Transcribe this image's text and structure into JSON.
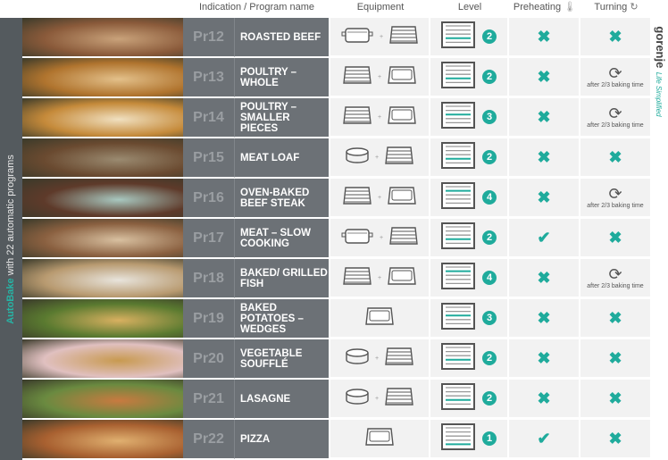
{
  "sidebar": {
    "highlight": "AutoBake",
    "text": " with 22 automatic programs"
  },
  "headers": {
    "program": "Indication / Program name",
    "equipment": "Equipment",
    "level": "Level",
    "preheating": "Preheating",
    "turning": "Turning"
  },
  "brand": {
    "name": "gorenje",
    "tagline": "Life Simplified"
  },
  "colors": {
    "accent": "#1fab9c",
    "sidebar": "#545a5e",
    "name_cell": "#6c7176"
  },
  "turning_note": "after 2/3 baking time",
  "plus": "+",
  "rows": [
    {
      "code": "Pr12",
      "name": "ROASTED BEEF",
      "equipment": [
        "roasting-dish",
        "wire-rack"
      ],
      "level": "2",
      "preheat": false,
      "turn": false,
      "img": [
        "#8a5a3a",
        "#c9a27a"
      ]
    },
    {
      "code": "Pr13",
      "name": "POULTRY – WHOLE",
      "equipment": [
        "wire-rack",
        "baking-tray"
      ],
      "level": "2",
      "preheat": false,
      "turn": true,
      "img": [
        "#b0742e",
        "#e3c08a"
      ]
    },
    {
      "code": "Pr14",
      "name": "POULTRY – SMALLER PIECES",
      "equipment": [
        "wire-rack",
        "baking-tray"
      ],
      "level": "3",
      "preheat": false,
      "turn": true,
      "img": [
        "#c58a3a",
        "#f0e0c0"
      ]
    },
    {
      "code": "Pr15",
      "name": "MEAT LOAF",
      "equipment": [
        "round-dish",
        "wire-rack"
      ],
      "level": "2",
      "preheat": false,
      "turn": false,
      "img": [
        "#6a4a30",
        "#9a8a70"
      ]
    },
    {
      "code": "Pr16",
      "name": "OVEN-BAKED BEEF STEAK",
      "equipment": [
        "wire-rack",
        "baking-tray"
      ],
      "level": "4",
      "preheat": false,
      "turn": true,
      "img": [
        "#5e3a2a",
        "#a8c8c0"
      ]
    },
    {
      "code": "Pr17",
      "name": "MEAT – SLOW COOKING",
      "equipment": [
        "roasting-dish",
        "wire-rack"
      ],
      "level": "2",
      "preheat": true,
      "turn": false,
      "img": [
        "#8a6040",
        "#d8c0a0"
      ]
    },
    {
      "code": "Pr18",
      "name": "BAKED/ GRILLED FISH",
      "equipment": [
        "wire-rack",
        "baking-tray"
      ],
      "level": "4",
      "preheat": false,
      "turn": true,
      "img": [
        "#b89a70",
        "#e8e4dc"
      ]
    },
    {
      "code": "Pr19",
      "name": "BAKED POTATOES – WEDGES",
      "equipment": [
        "baking-tray"
      ],
      "level": "3",
      "preheat": false,
      "turn": false,
      "img": [
        "#5a7a30",
        "#d8b060"
      ]
    },
    {
      "code": "Pr20",
      "name": "VEGETABLE SOUFFLÉ",
      "equipment": [
        "round-dish",
        "wire-rack"
      ],
      "level": "2",
      "preheat": false,
      "turn": false,
      "img": [
        "#e0c0c0",
        "#c89a50"
      ]
    },
    {
      "code": "Pr21",
      "name": "LASAGNE",
      "equipment": [
        "round-dish",
        "wire-rack"
      ],
      "level": "2",
      "preheat": false,
      "turn": false,
      "img": [
        "#6a8a40",
        "#c87a40"
      ]
    },
    {
      "code": "Pr22",
      "name": "PIZZA",
      "equipment": [
        "baking-tray"
      ],
      "level": "1",
      "preheat": true,
      "turn": false,
      "img": [
        "#a86030",
        "#e0b070"
      ]
    }
  ]
}
